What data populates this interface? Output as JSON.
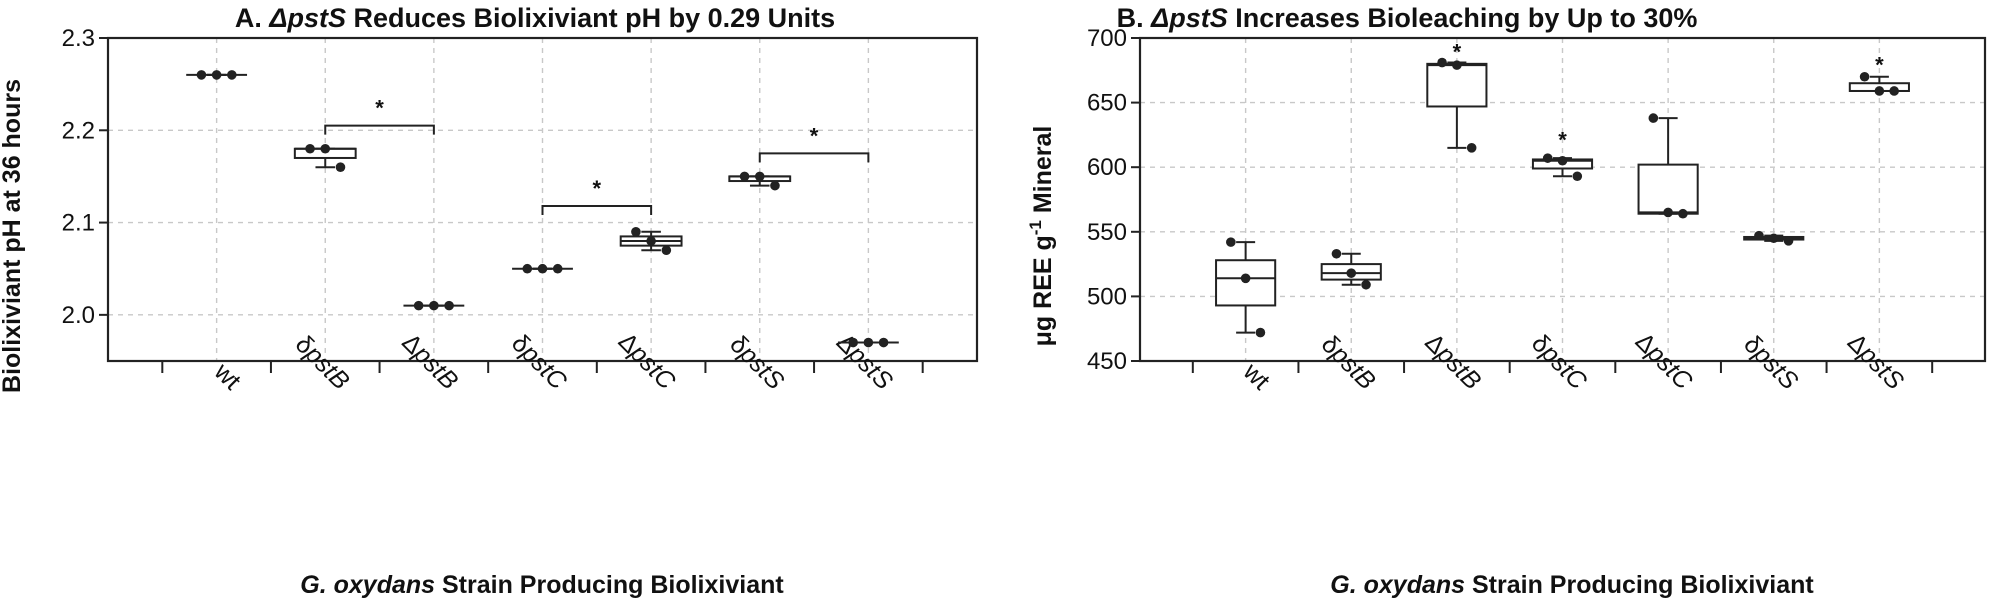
{
  "chart_data": [
    {
      "type": "box",
      "title_prefix": "A. ",
      "title_italic": "ΔpstS",
      "title_suffix": " Reduces Biolixiviant pH by 0.29 Units",
      "ylabel": "Biolixiviant pH at 36 hours",
      "xlabel_italic": "G. oxydans",
      "xlabel_rest": " Strain Producing Biolixiviant",
      "ylim": [
        1.95,
        2.3
      ],
      "yticks": [
        2.0,
        2.1,
        2.2,
        2.3
      ],
      "ytick_labels": [
        "2.0",
        "2.1",
        "2.2",
        "2.3"
      ],
      "grid": true,
      "categories": [
        "wt",
        "δpstB",
        "ΔpstB",
        "δpstC",
        "ΔpstC",
        "δpstS",
        "ΔpstS"
      ],
      "points": [
        [
          2.26,
          2.26,
          2.26
        ],
        [
          2.18,
          2.18,
          2.16
        ],
        [
          2.01,
          2.01,
          2.01
        ],
        [
          2.05,
          2.05,
          2.05
        ],
        [
          2.09,
          2.08,
          2.07
        ],
        [
          2.15,
          2.15,
          2.14
        ],
        [
          1.97,
          1.97,
          1.97
        ]
      ],
      "boxes": [
        {
          "q1": 2.26,
          "median": 2.26,
          "q3": 2.26,
          "min": 2.26,
          "max": 2.26
        },
        {
          "q1": 2.17,
          "median": 2.18,
          "q3": 2.18,
          "min": 2.16,
          "max": 2.18
        },
        {
          "q1": 2.01,
          "median": 2.01,
          "q3": 2.01,
          "min": 2.01,
          "max": 2.01
        },
        {
          "q1": 2.05,
          "median": 2.05,
          "q3": 2.05,
          "min": 2.05,
          "max": 2.05
        },
        {
          "q1": 2.075,
          "median": 2.08,
          "q3": 2.085,
          "min": 2.07,
          "max": 2.09
        },
        {
          "q1": 2.145,
          "median": 2.15,
          "q3": 2.15,
          "min": 2.14,
          "max": 2.15
        },
        {
          "q1": 1.97,
          "median": 1.97,
          "q3": 1.97,
          "min": 1.97,
          "max": 1.97
        }
      ],
      "significance": [
        {
          "from": 1,
          "to": 2,
          "y": 2.205,
          "label": "*"
        },
        {
          "from": 3,
          "to": 4,
          "y": 2.118,
          "label": "*"
        },
        {
          "from": 5,
          "to": 6,
          "y": 2.175,
          "label": "*"
        }
      ]
    },
    {
      "type": "box",
      "title_prefix": "B. ",
      "title_italic": "ΔpstS",
      "title_suffix": " Increases Bioleaching by Up to 30%",
      "ylabel_pre": "μg REE g",
      "ylabel_sup": "-1",
      "ylabel_post": " Mineral",
      "xlabel_italic": "G. oxydans",
      "xlabel_rest": " Strain Producing Biolixiviant",
      "ylim": [
        450,
        700
      ],
      "yticks": [
        450,
        500,
        550,
        600,
        650,
        700
      ],
      "ytick_labels": [
        "450",
        "500",
        "550",
        "600",
        "650",
        "700"
      ],
      "grid": true,
      "categories": [
        "wt",
        "δpstB",
        "ΔpstB",
        "δpstC",
        "ΔpstC",
        "δpstS",
        "ΔpstS"
      ],
      "points": [
        [
          542,
          514,
          472
        ],
        [
          533,
          518,
          509
        ],
        [
          681,
          679,
          615
        ],
        [
          607,
          605,
          593
        ],
        [
          638,
          565,
          564
        ],
        [
          547,
          545,
          543
        ],
        [
          670,
          659,
          659
        ]
      ],
      "boxes": [
        {
          "q1": 493,
          "median": 514,
          "q3": 528,
          "min": 472,
          "max": 542
        },
        {
          "q1": 513,
          "median": 518,
          "q3": 525,
          "min": 509,
          "max": 533
        },
        {
          "q1": 647,
          "median": 679,
          "q3": 680,
          "min": 615,
          "max": 681
        },
        {
          "q1": 599,
          "median": 605,
          "q3": 606,
          "min": 593,
          "max": 607
        },
        {
          "q1": 564,
          "median": 565,
          "q3": 602,
          "min": 564,
          "max": 638
        },
        {
          "q1": 544,
          "median": 545,
          "q3": 546,
          "min": 543,
          "max": 547
        },
        {
          "q1": 659,
          "median": 659,
          "q3": 665,
          "min": 659,
          "max": 670
        }
      ],
      "stars": [
        {
          "index": 2,
          "y": 691,
          "label": "*"
        },
        {
          "index": 3,
          "y": 623,
          "label": "*"
        },
        {
          "index": 6,
          "y": 681,
          "label": "*"
        }
      ]
    }
  ]
}
